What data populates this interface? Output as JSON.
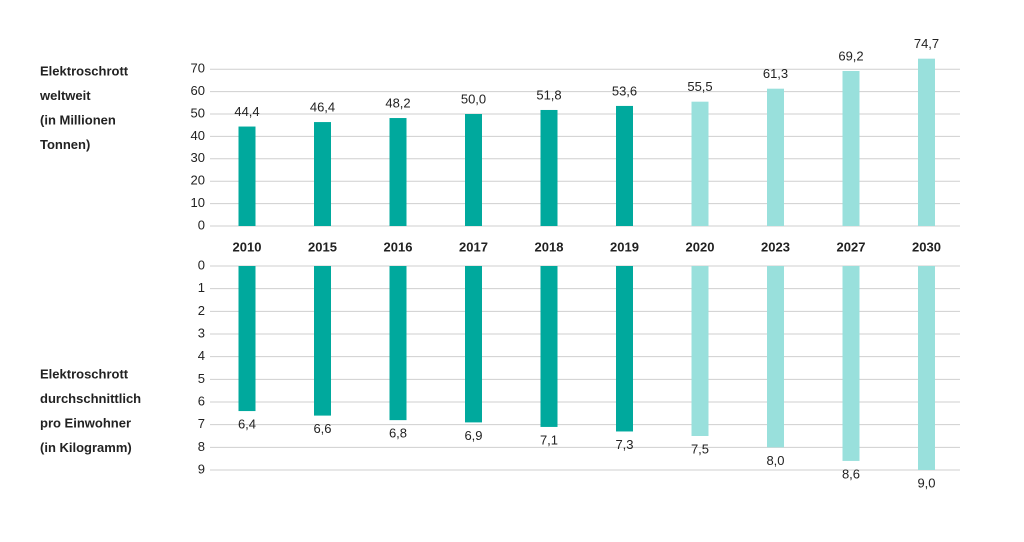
{
  "chart_data": [
    {
      "type": "bar",
      "y_label_lines": [
        "Elektroschrott",
        "weltweit",
        "(in Millionen",
        "Tonnen)"
      ],
      "categories": [
        "2010",
        "2015",
        "2016",
        "2017",
        "2018",
        "2019",
        "2020",
        "2023",
        "2027",
        "2030"
      ],
      "values": [
        44.4,
        46.4,
        48.2,
        50.0,
        51.8,
        53.6,
        55.5,
        61.3,
        69.2,
        74.7
      ],
      "value_labels": [
        "44,4",
        "46,4",
        "48,2",
        "50,0",
        "51,8",
        "53,6",
        "55,5",
        "61,3",
        "69,2",
        "74,7"
      ],
      "colors": [
        "#00a99d",
        "#00a99d",
        "#00a99d",
        "#00a99d",
        "#00a99d",
        "#00a99d",
        "#99e0dc",
        "#99e0dc",
        "#99e0dc",
        "#99e0dc"
      ],
      "ylim": [
        0,
        75
      ],
      "yticks": [
        0,
        10,
        20,
        30,
        40,
        50,
        60,
        70
      ],
      "grid": true,
      "inverted": false
    },
    {
      "type": "bar",
      "y_label_lines": [
        "Elektroschrott",
        "durchschnittlich",
        "pro Einwohner",
        "(in Kilogramm)"
      ],
      "values": [
        6.4,
        6.6,
        6.8,
        6.9,
        7.1,
        7.3,
        7.5,
        8.0,
        8.6,
        9.0
      ],
      "value_labels": [
        "6,4",
        "6,6",
        "6,8",
        "6,9",
        "7,1",
        "7,3",
        "7,5",
        "8,0",
        "8,6",
        "9,0"
      ],
      "colors": [
        "#00a99d",
        "#00a99d",
        "#00a99d",
        "#00a99d",
        "#00a99d",
        "#00a99d",
        "#99e0dc",
        "#99e0dc",
        "#99e0dc",
        "#99e0dc"
      ],
      "ylim": [
        0,
        9
      ],
      "yticks": [
        0,
        1,
        2,
        3,
        4,
        5,
        6,
        7,
        8,
        9
      ],
      "grid": true,
      "inverted": true
    }
  ]
}
